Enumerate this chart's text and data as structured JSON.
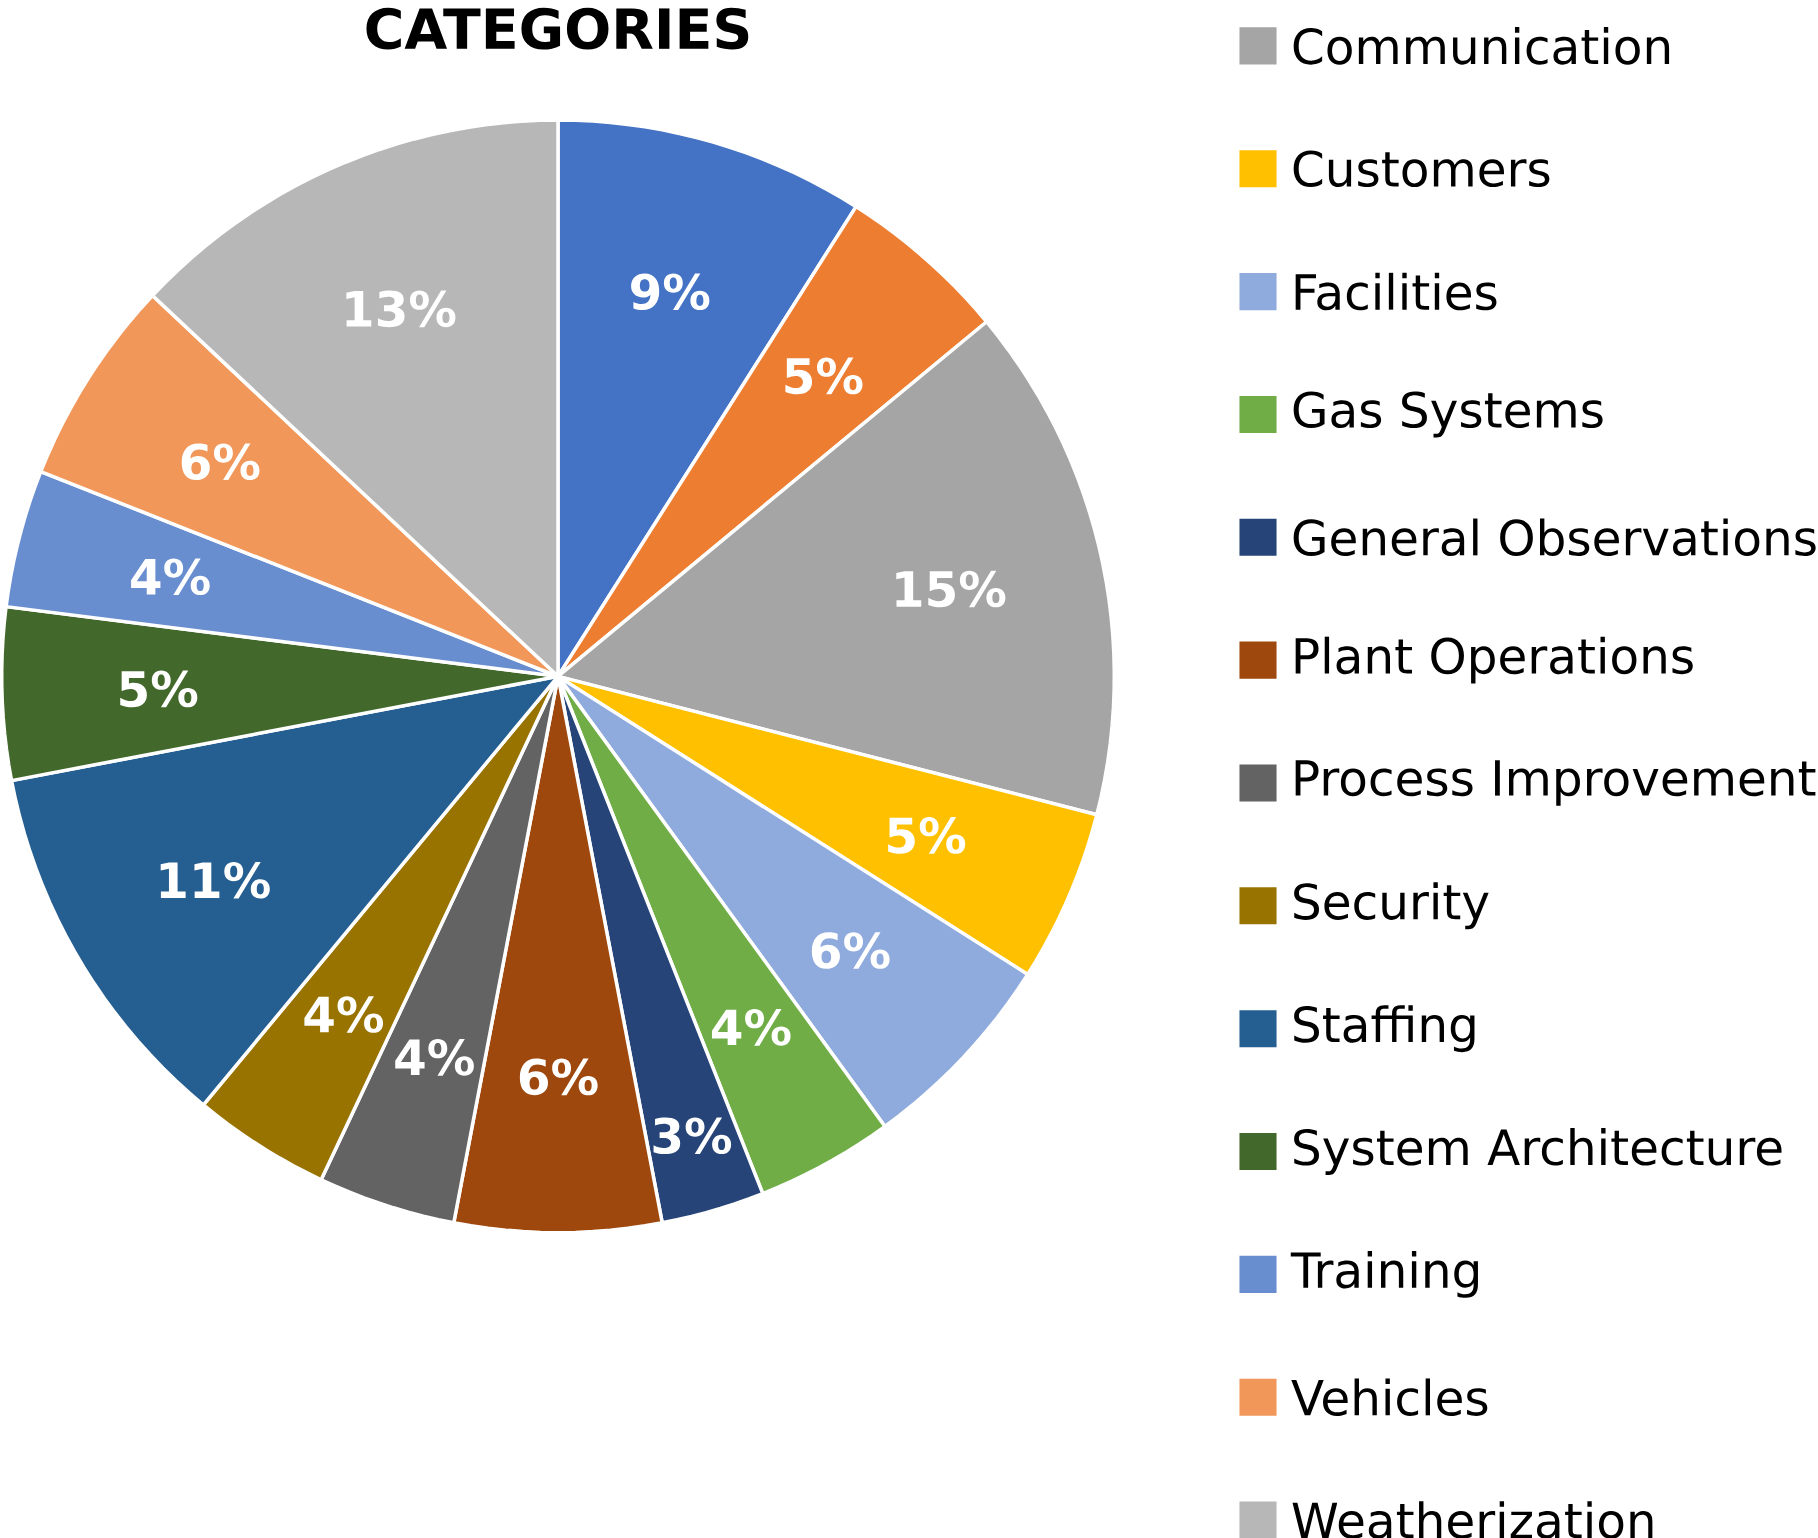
{
  "chart_data": {
    "type": "pie",
    "title": "CATEGORIES",
    "categories": [
      null,
      null,
      "Communication",
      "Customers",
      "Facilities",
      "Gas Systems",
      "General Observations",
      "Plant Operations",
      "Process Improvement",
      "Security",
      "Staffing",
      "System Architecture",
      "Training",
      "Vehicles",
      "Weatherization"
    ],
    "values": [
      9,
      5,
      15,
      5,
      6,
      4,
      3,
      6,
      4,
      4,
      11,
      5,
      4,
      6,
      13
    ],
    "value_labels": [
      "9%",
      "5%",
      "15%",
      "5%",
      "6%",
      "4%",
      "3%",
      "6%",
      "4%",
      "4%",
      "11%",
      "5%",
      "4%",
      "6%",
      "13%"
    ],
    "colors": [
      "#4472c4",
      "#ed7d31",
      "#a5a5a5",
      "#ffc000",
      "#8faadc",
      "#70ad47",
      "#264478",
      "#9e480e",
      "#636363",
      "#997300",
      "#255e91",
      "#43682b",
      "#698ed0",
      "#f1975a",
      "#b7b7b7"
    ],
    "legend": "right"
  }
}
